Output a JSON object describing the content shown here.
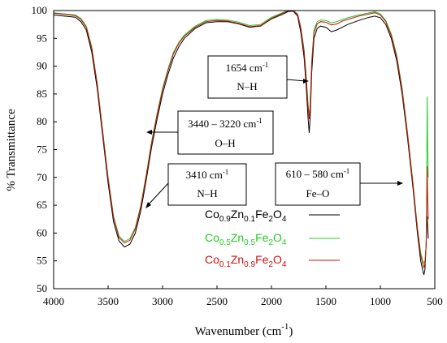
{
  "chart_data": {
    "type": "line",
    "xlabel": "Wavenumber (cm",
    "xlabel_sup": "-1",
    "xlabel_close": ")",
    "ylabel": "% Transmittance",
    "xlim": [
      4000,
      500
    ],
    "ylim": [
      50,
      100
    ],
    "x_reversed": true,
    "grid": false,
    "legend_position": "lower-right inside plot",
    "x_ticks": [
      {
        "value": 4000,
        "label": "4000"
      },
      {
        "value": 3500,
        "label": "3500"
      },
      {
        "value": 3000,
        "label": "3000"
      },
      {
        "value": 2500,
        "label": "2500"
      },
      {
        "value": 2000,
        "label": "2000"
      },
      {
        "value": 1500,
        "label": "1500"
      },
      {
        "value": 1000,
        "label": "1000"
      },
      {
        "value": 500,
        "label": "500"
      }
    ],
    "y_ticks": [
      {
        "value": 100,
        "label": "100"
      },
      {
        "value": 95,
        "label": "95"
      },
      {
        "value": 90,
        "label": "90"
      },
      {
        "value": 85,
        "label": "85"
      },
      {
        "value": 80,
        "label": "80"
      },
      {
        "value": 75,
        "label": "75"
      },
      {
        "value": 70,
        "label": "70"
      },
      {
        "value": 65,
        "label": "65"
      },
      {
        "value": 60,
        "label": "60"
      },
      {
        "value": 55,
        "label": "55"
      },
      {
        "value": 50,
        "label": "50"
      }
    ],
    "series": [
      {
        "name": "Co0.9Zn0.1Fe2O4",
        "legend_parts": [
          [
            "Co",
            ""
          ],
          [
            "0.9",
            "sub"
          ],
          [
            "Zn",
            ""
          ],
          [
            "0.1",
            "sub"
          ],
          [
            "Fe",
            ""
          ],
          [
            "2",
            "sub"
          ],
          [
            "O",
            ""
          ],
          [
            "4",
            "sub"
          ]
        ],
        "color": "#000000",
        "points": [
          [
            4000,
            99.2
          ],
          [
            3900,
            99.0
          ],
          [
            3800,
            98.8
          ],
          [
            3750,
            98.0
          ],
          [
            3700,
            96.5
          ],
          [
            3650,
            92.5
          ],
          [
            3600,
            86.0
          ],
          [
            3550,
            77.5
          ],
          [
            3500,
            69.0
          ],
          [
            3450,
            62.0
          ],
          [
            3400,
            58.6
          ],
          [
            3350,
            57.5
          ],
          [
            3300,
            58.0
          ],
          [
            3250,
            60.0
          ],
          [
            3200,
            64.0
          ],
          [
            3150,
            69.5
          ],
          [
            3100,
            75.5
          ],
          [
            3050,
            80.5
          ],
          [
            3000,
            85.0
          ],
          [
            2950,
            88.5
          ],
          [
            2900,
            91.5
          ],
          [
            2850,
            93.5
          ],
          [
            2800,
            95.0
          ],
          [
            2700,
            96.8
          ],
          [
            2600,
            97.8
          ],
          [
            2500,
            98.0
          ],
          [
            2400,
            98.0
          ],
          [
            2300,
            97.6
          ],
          [
            2200,
            97.0
          ],
          [
            2100,
            97.2
          ],
          [
            2000,
            98.5
          ],
          [
            1900,
            99.3
          ],
          [
            1850,
            99.8
          ],
          [
            1800,
            99.9
          ],
          [
            1760,
            99.0
          ],
          [
            1730,
            96.0
          ],
          [
            1700,
            91.5
          ],
          [
            1680,
            86.0
          ],
          [
            1665,
            81.0
          ],
          [
            1654,
            78.0
          ],
          [
            1645,
            80.5
          ],
          [
            1630,
            89.0
          ],
          [
            1610,
            95.0
          ],
          [
            1580,
            96.8
          ],
          [
            1550,
            97.2
          ],
          [
            1500,
            97.0
          ],
          [
            1450,
            96.2
          ],
          [
            1400,
            96.5
          ],
          [
            1350,
            97.0
          ],
          [
            1300,
            97.5
          ],
          [
            1200,
            98.2
          ],
          [
            1100,
            98.8
          ],
          [
            1050,
            99.0
          ],
          [
            1000,
            98.7
          ],
          [
            950,
            97.5
          ],
          [
            900,
            95.0
          ],
          [
            850,
            91.0
          ],
          [
            800,
            85.0
          ],
          [
            750,
            77.0
          ],
          [
            700,
            68.0
          ],
          [
            660,
            60.0
          ],
          [
            630,
            55.0
          ],
          [
            610,
            53.2
          ],
          [
            600,
            52.5
          ],
          [
            590,
            53.5
          ],
          [
            580,
            58.0
          ],
          [
            575,
            61.0
          ],
          [
            570,
            63.0
          ],
          [
            565,
            61.0
          ],
          [
            560,
            59.0
          ]
        ]
      },
      {
        "name": "Co0.5Zn0.5Fe2O4",
        "legend_parts": [
          [
            "Co",
            ""
          ],
          [
            "0.5",
            "sub"
          ],
          [
            "Zn",
            ""
          ],
          [
            "0.5",
            "sub"
          ],
          [
            "Fe",
            ""
          ],
          [
            "2",
            "sub"
          ],
          [
            "O",
            ""
          ],
          [
            "4",
            "sub"
          ]
        ],
        "color": "#22cc22",
        "points": [
          [
            4000,
            99.6
          ],
          [
            3900,
            99.4
          ],
          [
            3800,
            99.2
          ],
          [
            3750,
            98.6
          ],
          [
            3700,
            97.2
          ],
          [
            3650,
            93.5
          ],
          [
            3600,
            87.0
          ],
          [
            3550,
            78.5
          ],
          [
            3500,
            70.0
          ],
          [
            3450,
            63.0
          ],
          [
            3400,
            59.5
          ],
          [
            3350,
            58.5
          ],
          [
            3300,
            59.0
          ],
          [
            3250,
            61.0
          ],
          [
            3200,
            65.0
          ],
          [
            3150,
            70.5
          ],
          [
            3100,
            76.5
          ],
          [
            3050,
            81.5
          ],
          [
            3000,
            86.0
          ],
          [
            2950,
            89.5
          ],
          [
            2900,
            92.5
          ],
          [
            2850,
            94.3
          ],
          [
            2800,
            95.6
          ],
          [
            2700,
            97.2
          ],
          [
            2600,
            98.2
          ],
          [
            2500,
            98.4
          ],
          [
            2400,
            98.3
          ],
          [
            2300,
            97.9
          ],
          [
            2200,
            97.3
          ],
          [
            2100,
            97.5
          ],
          [
            2000,
            98.8
          ],
          [
            1900,
            99.6
          ],
          [
            1850,
            100.0
          ],
          [
            1800,
            100.0
          ],
          [
            1760,
            99.4
          ],
          [
            1730,
            97.0
          ],
          [
            1700,
            93.0
          ],
          [
            1680,
            88.0
          ],
          [
            1665,
            83.5
          ],
          [
            1654,
            81.0
          ],
          [
            1645,
            83.0
          ],
          [
            1630,
            91.0
          ],
          [
            1610,
            96.5
          ],
          [
            1580,
            98.0
          ],
          [
            1550,
            98.3
          ],
          [
            1500,
            98.2
          ],
          [
            1450,
            97.8
          ],
          [
            1400,
            98.0
          ],
          [
            1350,
            98.4
          ],
          [
            1300,
            98.7
          ],
          [
            1200,
            99.2
          ],
          [
            1100,
            99.6
          ],
          [
            1050,
            99.8
          ],
          [
            1000,
            99.4
          ],
          [
            950,
            98.2
          ],
          [
            900,
            95.8
          ],
          [
            850,
            92.0
          ],
          [
            800,
            86.0
          ],
          [
            750,
            78.0
          ],
          [
            700,
            69.0
          ],
          [
            660,
            61.0
          ],
          [
            630,
            56.5
          ],
          [
            610,
            55.0
          ],
          [
            600,
            54.5
          ],
          [
            590,
            55.0
          ],
          [
            580,
            58.0
          ],
          [
            575,
            68.0
          ],
          [
            570,
            84.5
          ],
          [
            565,
            75.0
          ],
          [
            560,
            70.0
          ]
        ]
      },
      {
        "name": "Co0.1Zn0.9Fe2O4",
        "legend_parts": [
          [
            "Co",
            ""
          ],
          [
            "0.1",
            "sub"
          ],
          [
            "Zn",
            ""
          ],
          [
            "0.9",
            "sub"
          ],
          [
            "Fe",
            ""
          ],
          [
            "2",
            "sub"
          ],
          [
            "O",
            ""
          ],
          [
            "4",
            "sub"
          ]
        ],
        "color": "#cc1111",
        "points": [
          [
            4000,
            99.5
          ],
          [
            3900,
            99.3
          ],
          [
            3800,
            99.1
          ],
          [
            3750,
            98.4
          ],
          [
            3700,
            97.0
          ],
          [
            3650,
            93.2
          ],
          [
            3600,
            86.8
          ],
          [
            3550,
            78.2
          ],
          [
            3500,
            69.8
          ],
          [
            3450,
            62.8
          ],
          [
            3400,
            59.2
          ],
          [
            3350,
            58.2
          ],
          [
            3300,
            58.7
          ],
          [
            3250,
            60.7
          ],
          [
            3200,
            64.7
          ],
          [
            3150,
            70.2
          ],
          [
            3100,
            76.2
          ],
          [
            3050,
            81.2
          ],
          [
            3000,
            85.7
          ],
          [
            2950,
            89.2
          ],
          [
            2900,
            92.2
          ],
          [
            2850,
            94.1
          ],
          [
            2800,
            95.4
          ],
          [
            2700,
            97.0
          ],
          [
            2600,
            98.0
          ],
          [
            2500,
            98.2
          ],
          [
            2400,
            98.1
          ],
          [
            2300,
            97.7
          ],
          [
            2200,
            97.1
          ],
          [
            2100,
            97.3
          ],
          [
            2000,
            98.6
          ],
          [
            1900,
            99.5
          ],
          [
            1850,
            99.9
          ],
          [
            1800,
            100.0
          ],
          [
            1760,
            99.3
          ],
          [
            1730,
            96.7
          ],
          [
            1700,
            92.5
          ],
          [
            1680,
            87.5
          ],
          [
            1665,
            83.0
          ],
          [
            1654,
            80.5
          ],
          [
            1645,
            82.5
          ],
          [
            1630,
            90.5
          ],
          [
            1610,
            96.0
          ],
          [
            1580,
            97.6
          ],
          [
            1550,
            98.0
          ],
          [
            1500,
            97.9
          ],
          [
            1450,
            97.4
          ],
          [
            1400,
            97.6
          ],
          [
            1350,
            98.1
          ],
          [
            1300,
            98.4
          ],
          [
            1200,
            99.0
          ],
          [
            1100,
            99.4
          ],
          [
            1050,
            99.6
          ],
          [
            1000,
            99.2
          ],
          [
            950,
            98.0
          ],
          [
            900,
            95.5
          ],
          [
            850,
            91.7
          ],
          [
            800,
            85.7
          ],
          [
            750,
            77.7
          ],
          [
            700,
            68.7
          ],
          [
            660,
            60.7
          ],
          [
            630,
            56.0
          ],
          [
            610,
            54.3
          ],
          [
            600,
            53.8
          ],
          [
            590,
            54.5
          ],
          [
            580,
            57.5
          ],
          [
            575,
            62.0
          ],
          [
            570,
            72.0
          ],
          [
            565,
            66.0
          ],
          [
            560,
            62.5
          ]
        ]
      }
    ],
    "annotations": [
      {
        "line1": "1654 cm",
        "line1_sup": "-1",
        "line2": "N–H"
      },
      {
        "line1": "3440 – 3220 cm",
        "line1_sup": "-1",
        "line2": "O–H"
      },
      {
        "line1": "3410 cm",
        "line1_sup": "-1",
        "line2": "N–H"
      },
      {
        "line1": "610 – 580 cm",
        "line1_sup": "-1",
        "line2": "Fe–O"
      }
    ]
  }
}
